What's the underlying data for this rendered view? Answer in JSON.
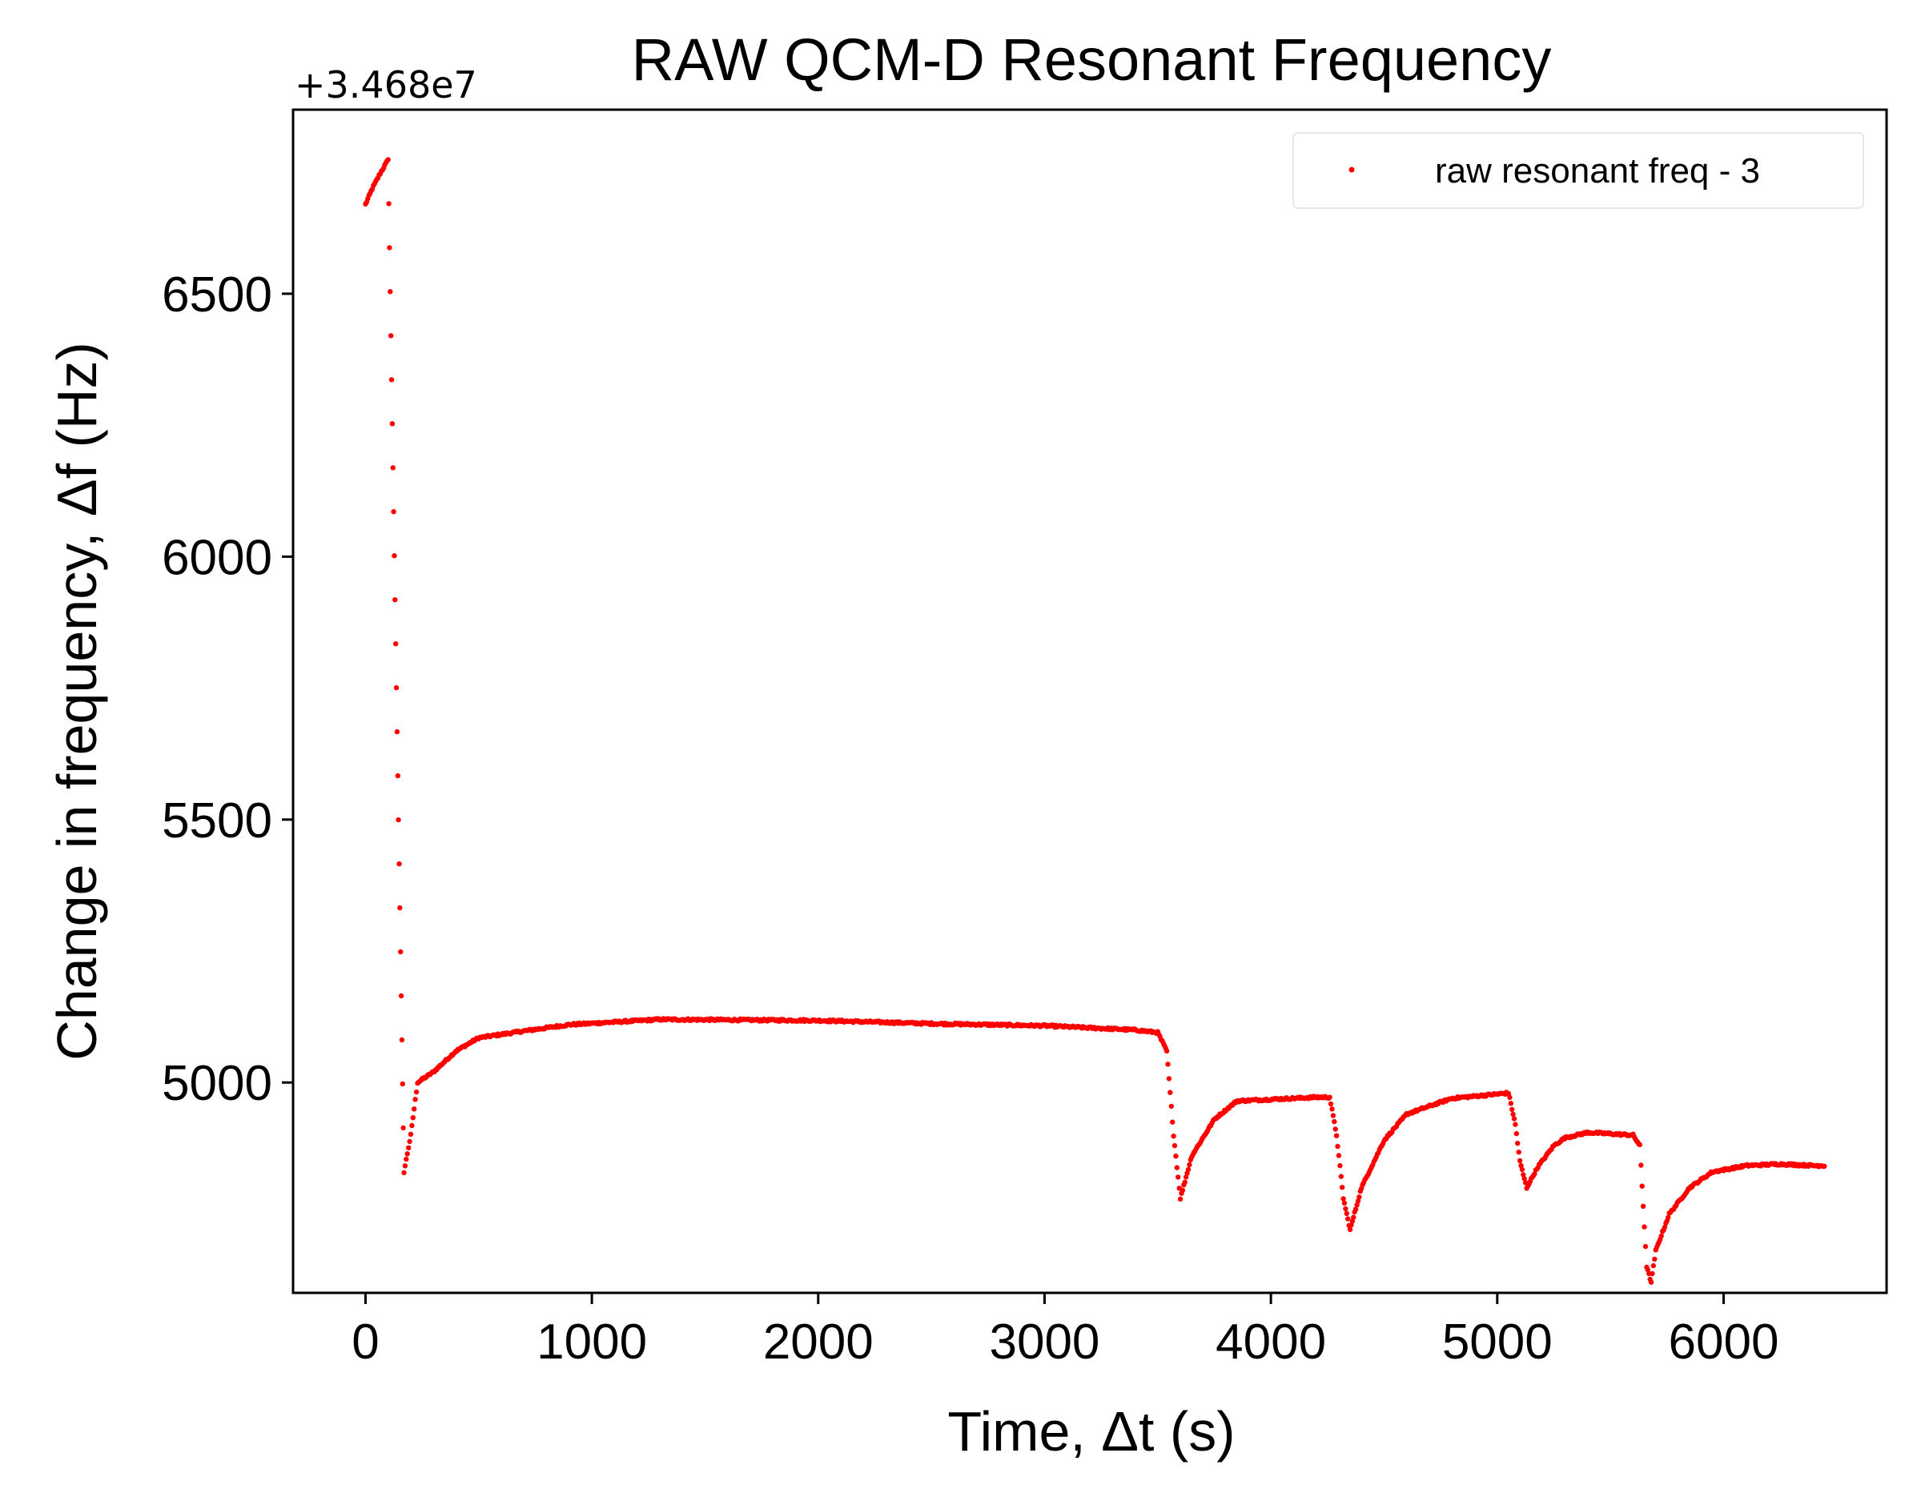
{
  "chart_data": {
    "type": "scatter",
    "title": "RAW QCM-D Resonant Frequency",
    "xlabel": "Time, Δt (s)",
    "ylabel": "Change in frequency, Δf (Hz)",
    "y_offset_label": "+3.468e7",
    "xlim": [
      -320,
      6720
    ],
    "ylim": [
      4600,
      6850
    ],
    "x_ticks": [
      0,
      1000,
      2000,
      3000,
      4000,
      5000,
      6000
    ],
    "y_ticks": [
      5000,
      5500,
      6000,
      6500
    ],
    "x_tick_labels": [
      "0",
      "1000",
      "2000",
      "3000",
      "4000",
      "5000",
      "6000"
    ],
    "y_tick_labels": [
      "5000",
      "5500",
      "6000",
      "6500"
    ],
    "grid": false,
    "legend": {
      "placement": "top-right",
      "entries": [
        "raw resonant freq - 3"
      ]
    },
    "series": [
      {
        "name": "raw resonant freq - 3",
        "color": "#ff0000",
        "marker": "point",
        "keypoints": [
          [
            0,
            6670
          ],
          [
            30,
            6700
          ],
          [
            60,
            6725
          ],
          [
            100,
            6755
          ],
          [
            170,
            4830
          ],
          [
            200,
            4900
          ],
          [
            230,
            5000
          ],
          [
            300,
            5020
          ],
          [
            400,
            5060
          ],
          [
            500,
            5085
          ],
          [
            700,
            5098
          ],
          [
            900,
            5110
          ],
          [
            1300,
            5120
          ],
          [
            2000,
            5118
          ],
          [
            2500,
            5112
          ],
          [
            3000,
            5108
          ],
          [
            3400,
            5100
          ],
          [
            3500,
            5095
          ],
          [
            3540,
            5060
          ],
          [
            3570,
            4900
          ],
          [
            3600,
            4780
          ],
          [
            3650,
            4860
          ],
          [
            3750,
            4930
          ],
          [
            3850,
            4965
          ],
          [
            4000,
            4968
          ],
          [
            4200,
            4972
          ],
          [
            4260,
            4972
          ],
          [
            4290,
            4900
          ],
          [
            4320,
            4780
          ],
          [
            4350,
            4720
          ],
          [
            4400,
            4800
          ],
          [
            4500,
            4890
          ],
          [
            4600,
            4940
          ],
          [
            4800,
            4970
          ],
          [
            5000,
            4978
          ],
          [
            5050,
            4980
          ],
          [
            5080,
            4920
          ],
          [
            5100,
            4850
          ],
          [
            5130,
            4800
          ],
          [
            5180,
            4840
          ],
          [
            5250,
            4880
          ],
          [
            5300,
            4895
          ],
          [
            5400,
            4905
          ],
          [
            5600,
            4900
          ],
          [
            5630,
            4880
          ],
          [
            5660,
            4650
          ],
          [
            5680,
            4620
          ],
          [
            5700,
            4680
          ],
          [
            5760,
            4750
          ],
          [
            5850,
            4800
          ],
          [
            5950,
            4830
          ],
          [
            6100,
            4842
          ],
          [
            6250,
            4845
          ],
          [
            6400,
            4842
          ],
          [
            6450,
            4842
          ]
        ]
      }
    ]
  }
}
